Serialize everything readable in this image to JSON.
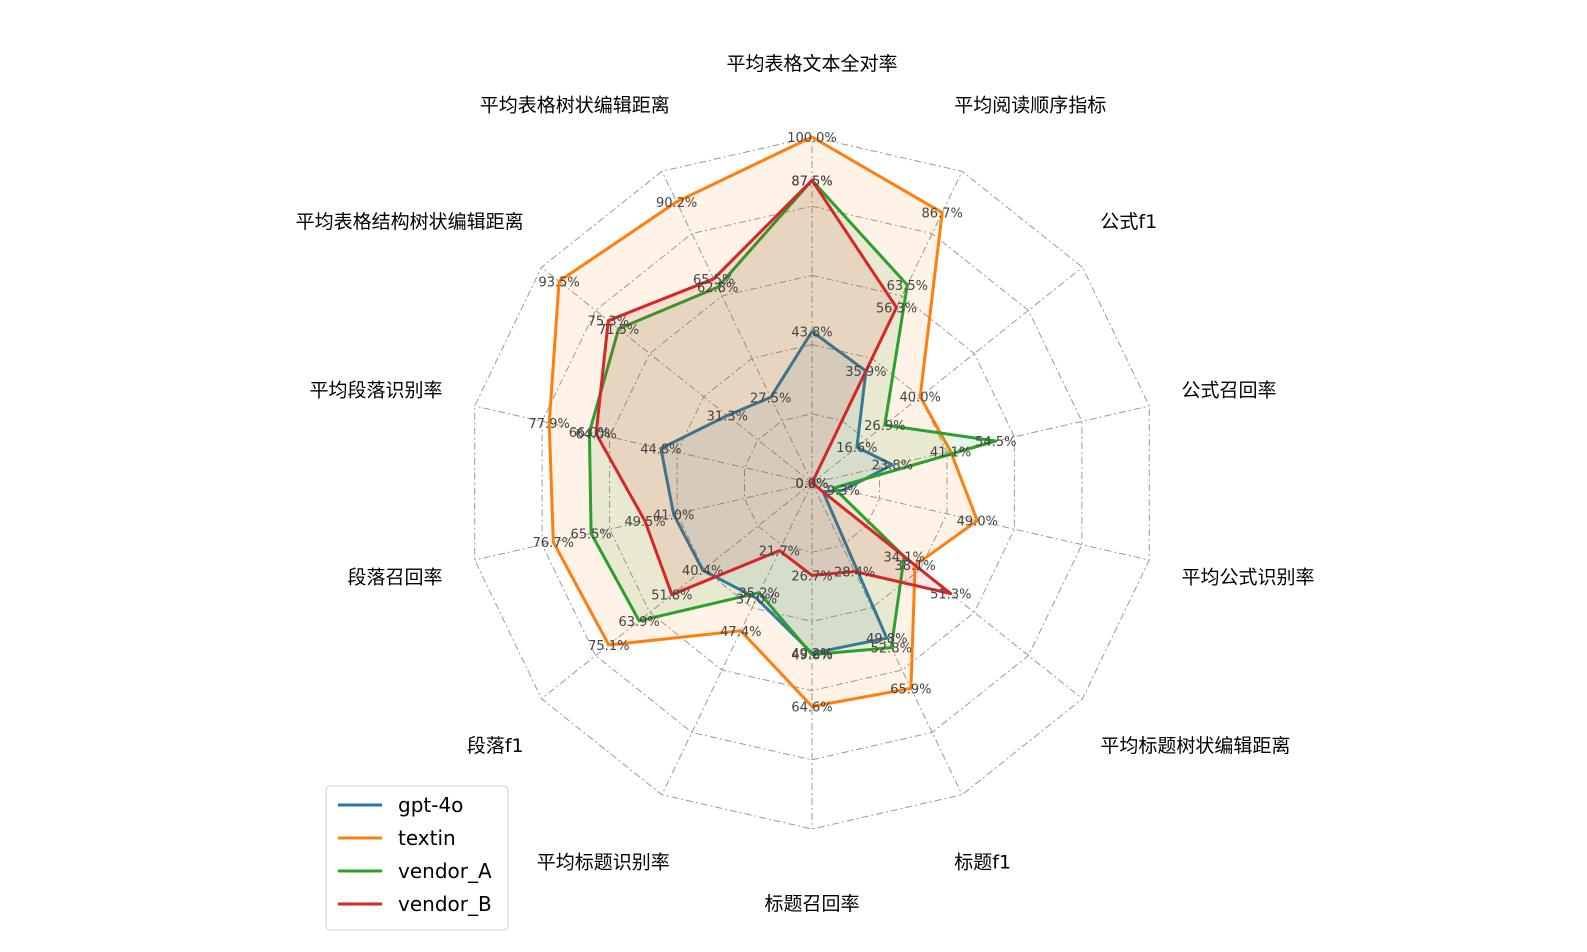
{
  "chart_data": {
    "type": "radar",
    "title": "",
    "axes": [
      "平均表格文本全对率",
      "平均阅读顺序指标",
      "公式f1",
      "公式召回率",
      "平均公式识别率",
      "平均标题树状编辑距离",
      "标题f1",
      "标题召回率",
      "平均标题识别率",
      "段落f1",
      "段落召回率",
      "平均段落识别率",
      "平均表格结构树状编辑距离",
      "平均表格树状编辑距离"
    ],
    "rmax": 100,
    "grid": true,
    "legend_position": "lower-left",
    "series": [
      {
        "name": "gpt-4o",
        "color": "#1f77b4",
        "values": [
          43.8,
          35.9,
          16.6,
          23.8,
          9.3,
          4.1,
          49.8,
          49.2,
          37.0,
          40.4,
          41.0,
          44.8,
          31.3,
          27.5
        ],
        "labels": [
          "43.8%",
          "35.9%",
          "16.6%",
          "23.8%",
          "9.3%",
          "",
          "49.8%",
          "49.2%",
          "37.0%",
          "40.4%",
          "41.0%",
          "44.8%",
          "31.3%",
          "27.5%"
        ]
      },
      {
        "name": "textin",
        "color": "#ff7f0e",
        "values": [
          100.0,
          86.7,
          40.0,
          41.1,
          49.0,
          38.1,
          65.9,
          64.6,
          47.4,
          75.1,
          76.7,
          77.9,
          93.5,
          90.2
        ],
        "labels": [
          "100.0%",
          "86.7%",
          "40.0%",
          "41.1%",
          "49.0%",
          "38.1%",
          "65.9%",
          "64.6%",
          "47.4%",
          "75.1%",
          "76.7%",
          "77.9%",
          "93.5%",
          "90.2%"
        ]
      },
      {
        "name": "vendor_A",
        "color": "#2ca02c",
        "values": [
          87.5,
          63.5,
          26.9,
          54.5,
          6.5,
          34.1,
          52.8,
          49.6,
          35.2,
          63.9,
          65.5,
          66.0,
          71.5,
          62.8
        ],
        "labels": [
          "87.5%",
          "63.5%",
          "26.9%",
          "54.5%",
          "",
          "34.1%",
          "52.8%",
          "49.6%",
          "35.2%",
          "63.9%",
          "65.5%",
          "66.0%",
          "71.5%",
          "62.8%"
        ]
      },
      {
        "name": "vendor_B",
        "color": "#d62728",
        "values": [
          87.5,
          56.3,
          0.0,
          0.0,
          0.0,
          51.3,
          28.4,
          26.7,
          21.7,
          51.8,
          49.5,
          64.0,
          75.3,
          65.5
        ],
        "labels": [
          "87.5%",
          "56.3%",
          "0.0%",
          "0.0%",
          "0.0%",
          "51.3%",
          "28.4%",
          "26.7%",
          "21.7%",
          "51.8%",
          "49.5%",
          "64.0%",
          "75.3%",
          "65.5%"
        ]
      }
    ]
  }
}
